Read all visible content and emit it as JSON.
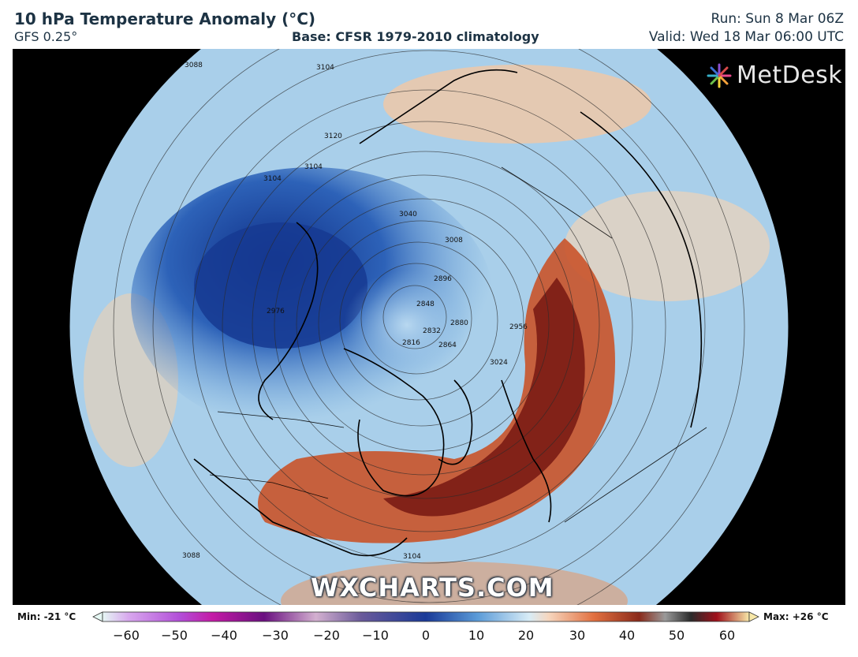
{
  "header": {
    "title": "10 hPa Temperature Anomaly (°C)",
    "model": "GFS 0.25°",
    "base": "Base: CFSR 1979-2010 climatology",
    "run": "Run: Sun 8 Mar 06Z",
    "valid": "Valid: Wed 18 Mar 06:00 UTC"
  },
  "logo": {
    "text": "MetDesk"
  },
  "watermark": "WXCHARTS.COM",
  "contour_labels": [
    "3088",
    "3104",
    "3120",
    "3104",
    "3104",
    "3040",
    "3008",
    "2976",
    "2896",
    "2848",
    "2832",
    "2880",
    "2816",
    "2864",
    "2956",
    "3024",
    "3088",
    "3104"
  ],
  "colorbar": {
    "min_label": "Min: -21 °C",
    "max_label": "Max: +26 °C",
    "ticks": [
      "−60",
      "−50",
      "−40",
      "−30",
      "−20",
      "−10",
      "0",
      "10",
      "20",
      "30",
      "40",
      "50",
      "60"
    ]
  },
  "colors": {
    "title": "#1d3344",
    "warm_core": "#7a1c14",
    "cold_core": "#1a3a8f",
    "neutral": "#a8cfe8"
  }
}
